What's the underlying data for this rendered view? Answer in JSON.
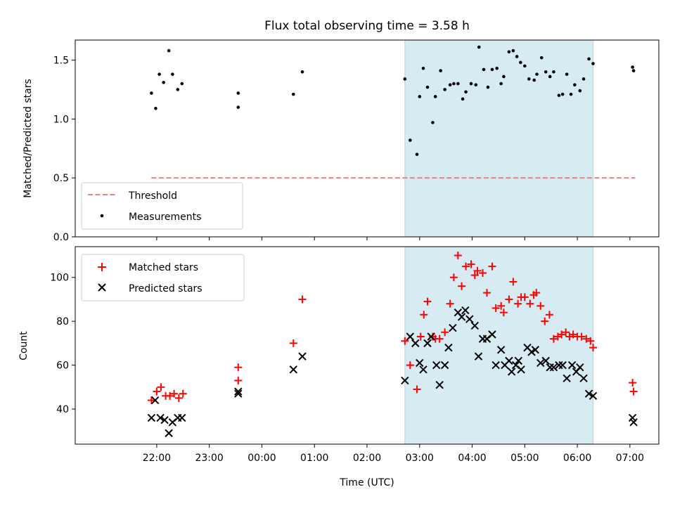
{
  "chart_data": [
    {
      "type": "scatter",
      "title": "Flux total observing time = 3.58 h",
      "xlabel": "",
      "ylabel": "Matched/Predicted stars",
      "x_unit": "hours since 21:00 UTC",
      "xlim": [
        -0.55,
        10.55
      ],
      "ylim": [
        0,
        1.67
      ],
      "y_ticks": [
        0.0,
        0.5,
        1.0,
        1.5
      ],
      "y_tick_labels": [
        "0.0",
        "0.5",
        "1.0",
        "1.5"
      ],
      "shaded_span": [
        5.72,
        9.3
      ],
      "legend": {
        "position": "lower-left",
        "entries": [
          "Threshold",
          "Measurements"
        ]
      },
      "threshold": {
        "name": "Threshold",
        "x": [
          0.9,
          10.1
        ],
        "y": 0.5,
        "color": "#f08080",
        "style": "dashed"
      },
      "measurements": {
        "name": "Measurements",
        "color": "#000000",
        "points": [
          [
            0.9,
            1.22
          ],
          [
            0.98,
            1.09
          ],
          [
            1.05,
            1.38
          ],
          [
            1.13,
            1.31
          ],
          [
            1.23,
            1.58
          ],
          [
            1.3,
            1.38
          ],
          [
            1.4,
            1.25
          ],
          [
            1.48,
            1.3
          ],
          [
            2.55,
            1.22
          ],
          [
            2.55,
            1.1
          ],
          [
            3.6,
            1.21
          ],
          [
            3.77,
            1.4
          ],
          [
            5.72,
            1.34
          ],
          [
            5.82,
            0.82
          ],
          [
            5.95,
            0.7
          ],
          [
            6.0,
            1.19
          ],
          [
            6.07,
            1.43
          ],
          [
            6.15,
            1.27
          ],
          [
            6.25,
            0.97
          ],
          [
            6.3,
            1.19
          ],
          [
            6.4,
            1.41
          ],
          [
            6.48,
            1.25
          ],
          [
            6.58,
            1.29
          ],
          [
            6.65,
            1.3
          ],
          [
            6.73,
            1.3
          ],
          [
            6.82,
            1.17
          ],
          [
            6.88,
            1.23
          ],
          [
            6.98,
            1.3
          ],
          [
            7.07,
            1.29
          ],
          [
            7.13,
            1.61
          ],
          [
            7.22,
            1.42
          ],
          [
            7.3,
            1.27
          ],
          [
            7.38,
            1.42
          ],
          [
            7.47,
            1.43
          ],
          [
            7.55,
            1.3
          ],
          [
            7.6,
            1.36
          ],
          [
            7.7,
            1.57
          ],
          [
            7.78,
            1.58
          ],
          [
            7.85,
            1.53
          ],
          [
            7.92,
            1.48
          ],
          [
            8.0,
            1.45
          ],
          [
            8.08,
            1.34
          ],
          [
            8.18,
            1.33
          ],
          [
            8.23,
            1.38
          ],
          [
            8.32,
            1.52
          ],
          [
            8.4,
            1.4
          ],
          [
            8.48,
            1.36
          ],
          [
            8.55,
            1.4
          ],
          [
            8.65,
            1.2
          ],
          [
            8.72,
            1.21
          ],
          [
            8.8,
            1.38
          ],
          [
            8.88,
            1.21
          ],
          [
            8.95,
            1.29
          ],
          [
            9.05,
            1.24
          ],
          [
            9.12,
            1.34
          ],
          [
            9.22,
            1.51
          ],
          [
            9.3,
            1.47
          ],
          [
            10.05,
            1.44
          ],
          [
            10.07,
            1.41
          ]
        ]
      }
    },
    {
      "type": "scatter",
      "title": "",
      "xlabel": "Time (UTC)",
      "ylabel": "Count",
      "x_unit": "hours since 21:00 UTC",
      "xlim": [
        -0.55,
        10.55
      ],
      "ylim": [
        24,
        114
      ],
      "x_ticks": [
        1,
        2,
        3,
        4,
        5,
        6,
        7,
        8,
        9,
        10
      ],
      "x_tick_labels": [
        "22:00",
        "23:00",
        "00:00",
        "01:00",
        "02:00",
        "03:00",
        "04:00",
        "05:00",
        "06:00",
        "07:00"
      ],
      "y_ticks": [
        40,
        60,
        80,
        100
      ],
      "y_tick_labels": [
        "40",
        "60",
        "80",
        "100"
      ],
      "shaded_span": [
        5.72,
        9.3
      ],
      "legend": {
        "position": "upper-left",
        "entries": [
          "Matched stars",
          "Predicted stars"
        ]
      },
      "series": [
        {
          "name": "Matched stars",
          "marker": "+",
          "color": "#ff0000",
          "points": [
            [
              0.9,
              44
            ],
            [
              1.0,
              48
            ],
            [
              1.08,
              50
            ],
            [
              1.17,
              46
            ],
            [
              1.25,
              46
            ],
            [
              1.33,
              47
            ],
            [
              1.42,
              45
            ],
            [
              1.5,
              47
            ],
            [
              2.55,
              59
            ],
            [
              2.55,
              53
            ],
            [
              3.6,
              70
            ],
            [
              3.77,
              90
            ],
            [
              5.72,
              71
            ],
            [
              5.82,
              60
            ],
            [
              5.95,
              49
            ],
            [
              6.02,
              73
            ],
            [
              6.08,
              83
            ],
            [
              6.15,
              89
            ],
            [
              6.25,
              73
            ],
            [
              6.3,
              72
            ],
            [
              6.38,
              72
            ],
            [
              6.48,
              75
            ],
            [
              6.58,
              88
            ],
            [
              6.65,
              100
            ],
            [
              6.73,
              110
            ],
            [
              6.8,
              96
            ],
            [
              6.88,
              105
            ],
            [
              6.98,
              106
            ],
            [
              7.05,
              101
            ],
            [
              7.1,
              103
            ],
            [
              7.2,
              102
            ],
            [
              7.28,
              93
            ],
            [
              7.38,
              105
            ],
            [
              7.45,
              86
            ],
            [
              7.55,
              87
            ],
            [
              7.6,
              84
            ],
            [
              7.7,
              90
            ],
            [
              7.78,
              98
            ],
            [
              7.87,
              88
            ],
            [
              7.93,
              91
            ],
            [
              8.0,
              91
            ],
            [
              8.1,
              88
            ],
            [
              8.17,
              92
            ],
            [
              8.22,
              93
            ],
            [
              8.3,
              87
            ],
            [
              8.38,
              80
            ],
            [
              8.47,
              83
            ],
            [
              8.55,
              72
            ],
            [
              8.63,
              73
            ],
            [
              8.7,
              74
            ],
            [
              8.78,
              75
            ],
            [
              8.85,
              73
            ],
            [
              8.92,
              74
            ],
            [
              9.0,
              73
            ],
            [
              9.08,
              73
            ],
            [
              9.17,
              72
            ],
            [
              9.25,
              71
            ],
            [
              9.3,
              68
            ],
            [
              10.05,
              52
            ],
            [
              10.07,
              48
            ]
          ]
        },
        {
          "name": "Predicted stars",
          "marker": "x",
          "color": "#000000",
          "points": [
            [
              0.9,
              36
            ],
            [
              0.97,
              44
            ],
            [
              1.07,
              36
            ],
            [
              1.15,
              35
            ],
            [
              1.23,
              29
            ],
            [
              1.3,
              34
            ],
            [
              1.4,
              36
            ],
            [
              1.48,
              36
            ],
            [
              2.55,
              48
            ],
            [
              2.55,
              47
            ],
            [
              3.6,
              58
            ],
            [
              3.77,
              64
            ],
            [
              5.72,
              53
            ],
            [
              5.82,
              73
            ],
            [
              5.92,
              70
            ],
            [
              6.0,
              61
            ],
            [
              6.07,
              58
            ],
            [
              6.15,
              70
            ],
            [
              6.22,
              73
            ],
            [
              6.32,
              60
            ],
            [
              6.38,
              51
            ],
            [
              6.48,
              60
            ],
            [
              6.55,
              68
            ],
            [
              6.63,
              77
            ],
            [
              6.73,
              84
            ],
            [
              6.8,
              82
            ],
            [
              6.87,
              85
            ],
            [
              6.95,
              81
            ],
            [
              7.05,
              78
            ],
            [
              7.12,
              64
            ],
            [
              7.2,
              72
            ],
            [
              7.28,
              72
            ],
            [
              7.38,
              74
            ],
            [
              7.45,
              60
            ],
            [
              7.55,
              67
            ],
            [
              7.62,
              60
            ],
            [
              7.7,
              62
            ],
            [
              7.75,
              57
            ],
            [
              7.83,
              60
            ],
            [
              7.88,
              62
            ],
            [
              7.93,
              58
            ],
            [
              8.05,
              68
            ],
            [
              8.13,
              66
            ],
            [
              8.2,
              67
            ],
            [
              8.3,
              61
            ],
            [
              8.4,
              62
            ],
            [
              8.48,
              59
            ],
            [
              8.55,
              59
            ],
            [
              8.65,
              60
            ],
            [
              8.72,
              60
            ],
            [
              8.8,
              54
            ],
            [
              8.9,
              60
            ],
            [
              8.98,
              57
            ],
            [
              9.05,
              59
            ],
            [
              9.12,
              54
            ],
            [
              9.22,
              47
            ],
            [
              9.3,
              46
            ],
            [
              10.05,
              36
            ],
            [
              10.07,
              34
            ]
          ]
        }
      ]
    }
  ]
}
